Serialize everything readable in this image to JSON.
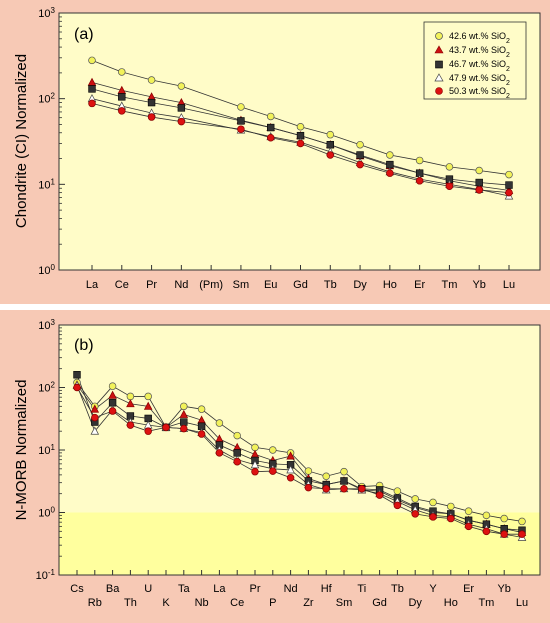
{
  "colors": {
    "panel_bg": "#f7c9b5",
    "plot_bg": "#fffcc8",
    "band_bg": "#ffff9e",
    "line": "#333333"
  },
  "series_styles": [
    {
      "marker": "circle",
      "fill": "#f2f25a",
      "stroke": "#555555"
    },
    {
      "marker": "triangle",
      "fill": "#cc1111",
      "stroke": "#880000"
    },
    {
      "marker": "square",
      "fill": "#333333",
      "stroke": "#000000"
    },
    {
      "marker": "triangle",
      "fill": "#ffffff",
      "stroke": "#444444"
    },
    {
      "marker": "circle",
      "fill": "#dd1111",
      "stroke": "#880000"
    }
  ],
  "legend": {
    "placement": "top-right",
    "entries": [
      {
        "value": "42.6 wt.% SiO",
        "sub": "2"
      },
      {
        "value": "43.7 wt.% SiO",
        "sub": "2"
      },
      {
        "value": "46.7 wt.% SiO",
        "sub": "2"
      },
      {
        "value": "47.9 wt.% SiO",
        "sub": "2"
      },
      {
        "value": "50.3 wt.% SiO",
        "sub": "2"
      }
    ]
  },
  "chart_data": [
    {
      "type": "line",
      "panel_label": "(a)",
      "ylabel": "Chondrite (CI) Normalized",
      "yscale": "log",
      "ylim": [
        1,
        1000
      ],
      "yticks": [
        {
          "base": "10",
          "exp": "0"
        },
        {
          "base": "10",
          "exp": "1"
        },
        {
          "base": "10",
          "exp": "2"
        },
        {
          "base": "10",
          "exp": "3"
        }
      ],
      "grid": false,
      "categories": [
        "La",
        "Ce",
        "Pr",
        "Nd",
        "(Pm)",
        "Sm",
        "Eu",
        "Gd",
        "Tb",
        "Dy",
        "Ho",
        "Er",
        "Tm",
        "Yb",
        "Lu"
      ],
      "series": [
        {
          "name": "42.6 wt.% SiO2",
          "values": [
            280,
            205,
            165,
            140,
            null,
            80,
            62,
            47,
            38,
            29,
            22,
            19,
            16,
            14.5,
            13
          ]
        },
        {
          "name": "43.7 wt.% SiO2",
          "values": [
            155,
            125,
            105,
            90,
            null,
            56,
            46,
            37,
            29,
            21.5,
            16.5,
            13.5,
            11,
            9.5,
            8.5
          ]
        },
        {
          "name": "46.7 wt.% SiO2",
          "values": [
            130,
            105,
            90,
            78,
            null,
            55,
            46,
            37,
            29,
            22,
            17,
            13.5,
            11.5,
            10.5,
            9.8
          ]
        },
        {
          "name": "47.9 wt.% SiO2",
          "values": [
            100,
            82,
            68,
            60,
            null,
            43,
            36,
            31,
            24,
            18,
            14,
            11.5,
            10,
            8.7,
            7.3
          ]
        },
        {
          "name": "50.3 wt.% SiO2",
          "values": [
            88,
            72,
            61,
            54,
            null,
            44,
            35,
            30,
            22,
            17,
            13.5,
            11,
            9.5,
            8.6,
            8.0
          ]
        }
      ]
    },
    {
      "type": "line",
      "panel_label": "(b)",
      "ylabel": "N-MORB Normalized",
      "yscale": "log",
      "ylim": [
        0.1,
        1000
      ],
      "yticks": [
        {
          "base": "10",
          "exp": "-1"
        },
        {
          "base": "10",
          "exp": "0"
        },
        {
          "base": "10",
          "exp": "1"
        },
        {
          "base": "10",
          "exp": "2"
        },
        {
          "base": "10",
          "exp": "3"
        }
      ],
      "grid": false,
      "shaded_below": 1,
      "categories": [
        "Cs",
        "Rb",
        "Ba",
        "Th",
        "U",
        "K",
        "Ta",
        "Nb",
        "La",
        "Ce",
        "Pr",
        "P",
        "Nd",
        "Zr",
        "Hf",
        "Sm",
        "Ti",
        "Gd",
        "Tb",
        "Dy",
        "Y",
        "Ho",
        "Er",
        "Tm",
        "Yb",
        "Lu"
      ],
      "series": [
        {
          "name": "42.6 wt.% SiO2",
          "values": [
            120,
            50,
            105,
            72,
            72,
            23,
            50,
            45,
            27,
            17,
            11,
            10,
            9,
            4.6,
            3.8,
            4.5,
            2.6,
            2.7,
            2.2,
            1.65,
            1.45,
            1.25,
            1.05,
            0.9,
            0.8,
            0.72
          ]
        },
        {
          "name": "43.7 wt.% SiO2",
          "values": [
            110,
            45,
            75,
            55,
            50,
            23,
            37,
            30,
            15,
            11,
            8.5,
            6.8,
            8.0,
            3.5,
            2.8,
            3.2,
            2.3,
            2.2,
            1.6,
            1.2,
            1.0,
            0.95,
            0.75,
            0.65,
            0.55,
            0.48
          ]
        },
        {
          "name": "46.7 wt.% SiO2",
          "values": [
            160,
            28,
            57,
            35,
            32,
            23,
            28,
            24,
            12,
            9.0,
            6.8,
            6.0,
            5.8,
            3.2,
            2.8,
            3.2,
            2.4,
            2.3,
            1.7,
            1.25,
            1.05,
            0.95,
            0.75,
            0.65,
            0.55,
            0.52
          ]
        },
        {
          "name": "47.9 wt.% SiO2",
          "values": [
            108,
            20,
            44,
            28,
            25,
            23,
            22,
            19,
            10,
            7.0,
            5.8,
            5.0,
            4.8,
            2.8,
            2.3,
            2.4,
            2.3,
            2.0,
            1.5,
            1.1,
            0.9,
            0.85,
            0.65,
            0.55,
            0.45,
            0.4
          ]
        },
        {
          "name": "50.3 wt.% SiO2",
          "values": [
            100,
            33,
            42,
            25,
            20,
            23,
            22,
            18,
            9.0,
            6.5,
            4.5,
            4.6,
            3.6,
            2.5,
            2.4,
            2.4,
            2.4,
            1.9,
            1.3,
            0.95,
            0.85,
            0.8,
            0.6,
            0.5,
            0.45,
            0.45
          ]
        }
      ]
    }
  ]
}
